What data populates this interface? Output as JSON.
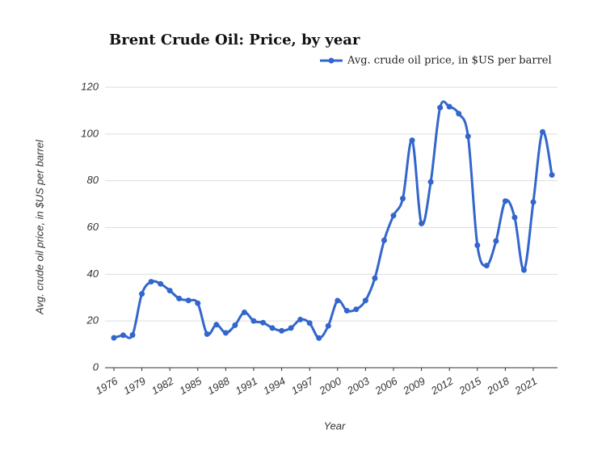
{
  "chart_data": {
    "type": "line",
    "title": "Brent Crude Oil: Price, by year",
    "x_label": "Year",
    "y_label": "Avg. crude oil price, in $US per barrel",
    "x": [
      1976,
      1977,
      1978,
      1979,
      1980,
      1981,
      1982,
      1983,
      1984,
      1985,
      1986,
      1987,
      1988,
      1989,
      1990,
      1991,
      1992,
      1993,
      1994,
      1995,
      1996,
      1997,
      1998,
      1999,
      2000,
      2001,
      2002,
      2003,
      2004,
      2005,
      2006,
      2007,
      2008,
      2009,
      2010,
      2011,
      2012,
      2013,
      2014,
      2015,
      2016,
      2017,
      2018,
      2019,
      2020,
      2021,
      2022,
      2023
    ],
    "series": [
      {
        "name": "Avg. crude oil price, in $US per barrel",
        "color": "#3366cc",
        "values": [
          12.8,
          13.9,
          14.0,
          31.6,
          36.8,
          35.9,
          33.0,
          29.6,
          28.8,
          27.6,
          14.4,
          18.4,
          14.9,
          18.2,
          23.7,
          20.0,
          19.3,
          17.0,
          15.8,
          17.0,
          20.6,
          19.1,
          12.7,
          17.9,
          28.7,
          24.4,
          25.0,
          28.8,
          38.3,
          54.5,
          65.1,
          72.4,
          97.3,
          61.7,
          79.5,
          111.3,
          111.7,
          108.7,
          99.0,
          52.4,
          43.7,
          54.2,
          71.3,
          64.3,
          41.8,
          70.9,
          100.9,
          82.5
        ]
      }
    ],
    "xlim": [
      1975.05,
      2023.6
    ],
    "xticks": [
      1976,
      1979,
      1982,
      1985,
      1988,
      1991,
      1994,
      1997,
      2000,
      2003,
      2006,
      2009,
      2012,
      2015,
      2018,
      2021
    ],
    "ylim": [
      0,
      120
    ],
    "yticks": [
      0,
      20,
      40,
      60,
      80,
      100,
      120
    ],
    "grid": true,
    "legend": "top-right"
  }
}
